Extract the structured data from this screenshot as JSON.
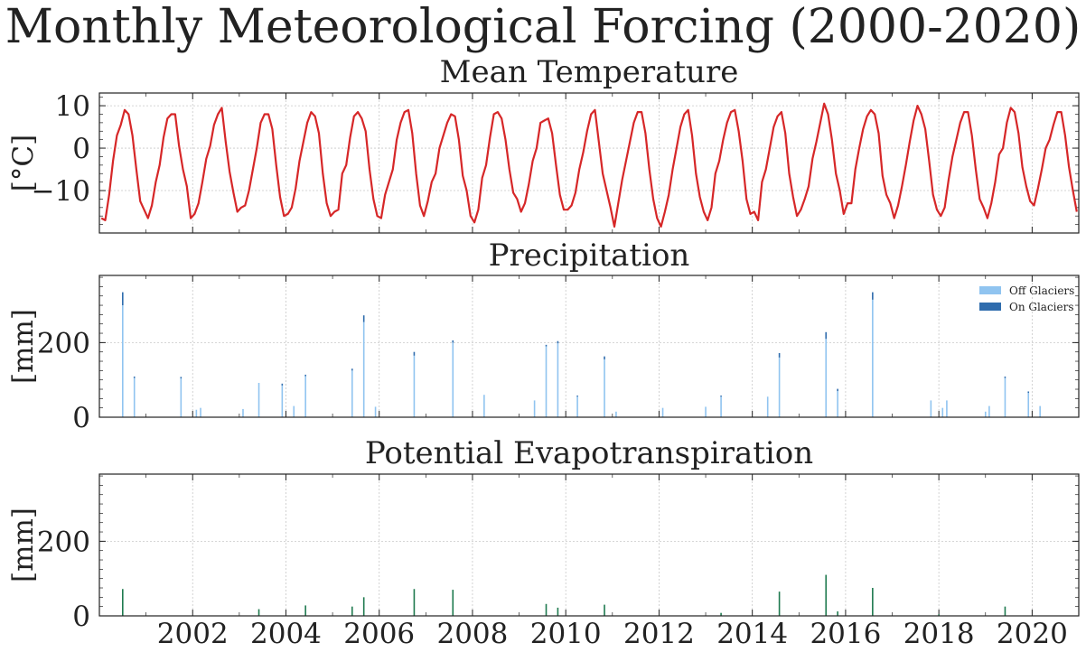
{
  "figure": {
    "suptitle": "Monthly Meteorological Forcing (2000-2020)"
  },
  "chart_data": [
    {
      "type": "line",
      "title": "Mean Temperature",
      "ylabel": "[°C]",
      "xlim": [
        2000.0,
        2021.0
      ],
      "ylim": [
        -20,
        13
      ],
      "yticks": [
        10,
        0,
        -10
      ],
      "ytick_labels": [
        "10",
        "0",
        "−10"
      ],
      "grid": true,
      "series": [
        {
          "color": "#d62728",
          "x_start": 2000.0,
          "x_step_months": 1,
          "values": [
            -16.5,
            -17.0,
            -11.0,
            -3.0,
            3.0,
            5.5,
            9.0,
            8.0,
            3.0,
            -5.0,
            -12.5,
            -14.5,
            -16.5,
            -13.5,
            -8.0,
            -4.0,
            2.5,
            7.0,
            8.0,
            8.0,
            0.5,
            -5.0,
            -9.0,
            -16.5,
            -15.5,
            -13.0,
            -8.0,
            -2.5,
            0.5,
            5.5,
            8.0,
            9.5,
            1.5,
            -5.5,
            -10.5,
            -15.0,
            -14.0,
            -13.5,
            -10.0,
            -5.0,
            0.0,
            6.0,
            8.0,
            8.0,
            4.5,
            -4.0,
            -11.5,
            -16.0,
            -15.5,
            -14.0,
            -9.5,
            -3.0,
            1.5,
            6.0,
            8.5,
            7.5,
            3.5,
            -6.0,
            -13.0,
            -16.0,
            -15.0,
            -14.5,
            -6.0,
            -4.0,
            2.5,
            7.5,
            8.5,
            7.0,
            4.0,
            -5.0,
            -12.0,
            -16.0,
            -16.5,
            -11.0,
            -8.0,
            -5.0,
            2.0,
            6.0,
            8.5,
            9.0,
            3.5,
            -6.0,
            -13.5,
            -16.0,
            -12.5,
            -8.0,
            -6.0,
            0.0,
            3.0,
            6.0,
            8.0,
            7.5,
            2.0,
            -6.5,
            -10.0,
            -16.0,
            -17.5,
            -14.5,
            -7.0,
            -4.0,
            2.5,
            8.0,
            8.5,
            7.0,
            2.0,
            -5.0,
            -10.5,
            -12.0,
            -15.0,
            -13.0,
            -8.5,
            -3.0,
            0.0,
            6.0,
            6.5,
            7.0,
            3.5,
            -4.0,
            -11.0,
            -14.5,
            -14.5,
            -13.5,
            -10.5,
            -5.0,
            -1.0,
            4.0,
            8.0,
            9.0,
            1.5,
            -6.0,
            -10.0,
            -14.0,
            -18.5,
            -13.0,
            -7.5,
            -3.0,
            1.5,
            6.0,
            8.5,
            8.5,
            3.5,
            -5.0,
            -12.0,
            -16.5,
            -18.5,
            -15.0,
            -11.0,
            -5.0,
            0.0,
            5.0,
            8.0,
            9.0,
            3.0,
            -6.0,
            -11.5,
            -15.0,
            -17.0,
            -14.0,
            -6.0,
            -3.0,
            2.0,
            6.0,
            8.5,
            9.0,
            4.0,
            -3.0,
            -12.0,
            -15.5,
            -15.0,
            -17.0,
            -8.0,
            -5.0,
            0.0,
            5.0,
            7.5,
            8.5,
            3.5,
            -6.0,
            -11.5,
            -16.0,
            -14.5,
            -12.0,
            -9.0,
            -2.5,
            1.5,
            6.0,
            10.5,
            8.0,
            2.0,
            -6.0,
            -10.0,
            -15.5,
            -13.0,
            -13.0,
            -5.0,
            0.0,
            4.5,
            7.5,
            9.0,
            8.0,
            3.5,
            -6.5,
            -11.0,
            -13.0,
            -16.5,
            -13.5,
            -9.0,
            -4.0,
            1.5,
            6.5,
            10.0,
            8.0,
            4.5,
            -3.0,
            -11.0,
            -14.5,
            -16.0,
            -14.0,
            -7.5,
            -2.0,
            2.0,
            6.0,
            8.5,
            8.5,
            3.0,
            -5.0,
            -12.0,
            -14.0,
            -16.5,
            -13.0,
            -8.0,
            -1.5,
            0.0,
            6.0,
            9.5,
            8.5,
            3.5,
            -4.5,
            -9.0,
            -12.5,
            -13.5,
            -9.5,
            -5.0,
            0.0,
            2.0,
            5.5,
            8.5,
            8.5,
            3.0,
            -4.5,
            -10.0,
            -15.0
          ]
        }
      ]
    },
    {
      "type": "bar",
      "stacked": true,
      "title": "Precipitation",
      "ylabel": "[mm]",
      "xlim": [
        2000.0,
        2021.0
      ],
      "ylim": [
        0,
        380
      ],
      "yticks": [
        0,
        200
      ],
      "grid": true,
      "legend_position": "top-right",
      "series": [
        {
          "name": "Off Glaciers",
          "color": "#90c4f0",
          "points": [
            [
              2000.5,
              300
            ],
            [
              2000.75,
              105
            ],
            [
              2001.75,
              104
            ],
            [
              2002.08,
              20
            ],
            [
              2002.17,
              25
            ],
            [
              2003.08,
              22
            ],
            [
              2003.42,
              92
            ],
            [
              2003.92,
              85
            ],
            [
              2004.17,
              30
            ],
            [
              2004.42,
              110
            ],
            [
              2005.42,
              125
            ],
            [
              2005.67,
              255
            ],
            [
              2005.92,
              28
            ],
            [
              2006.75,
              165
            ],
            [
              2007.58,
              200
            ],
            [
              2008.25,
              60
            ],
            [
              2009.33,
              45
            ],
            [
              2009.58,
              190
            ],
            [
              2009.83,
              198
            ],
            [
              2010.25,
              55
            ],
            [
              2010.83,
              155
            ],
            [
              2011.08,
              15
            ],
            [
              2012.08,
              25
            ],
            [
              2013.0,
              28
            ],
            [
              2013.33,
              55
            ],
            [
              2014.33,
              55
            ],
            [
              2014.58,
              160
            ],
            [
              2015.58,
              210
            ],
            [
              2015.83,
              70
            ],
            [
              2016.58,
              315
            ],
            [
              2017.83,
              45
            ],
            [
              2018.08,
              25
            ],
            [
              2018.17,
              45
            ],
            [
              2019.0,
              15
            ],
            [
              2019.08,
              30
            ],
            [
              2019.42,
              105
            ],
            [
              2019.92,
              65
            ],
            [
              2020.17,
              30
            ]
          ]
        },
        {
          "name": "On Glaciers",
          "color": "#2f6cad",
          "points": [
            [
              2000.5,
              35
            ],
            [
              2000.75,
              4
            ],
            [
              2001.75,
              4
            ],
            [
              2003.92,
              5
            ],
            [
              2004.42,
              4
            ],
            [
              2005.42,
              5
            ],
            [
              2005.67,
              18
            ],
            [
              2006.75,
              10
            ],
            [
              2007.58,
              6
            ],
            [
              2009.58,
              4
            ],
            [
              2009.83,
              6
            ],
            [
              2010.25,
              3
            ],
            [
              2010.83,
              8
            ],
            [
              2013.33,
              3
            ],
            [
              2014.58,
              12
            ],
            [
              2015.58,
              18
            ],
            [
              2015.83,
              6
            ],
            [
              2016.58,
              20
            ],
            [
              2019.42,
              4
            ],
            [
              2019.92,
              4
            ]
          ]
        }
      ]
    },
    {
      "type": "bar",
      "title": "Potential Evapotranspiration",
      "ylabel": "[mm]",
      "xlim": [
        2000.0,
        2021.0
      ],
      "ylim": [
        0,
        380
      ],
      "yticks": [
        0,
        200
      ],
      "xticks": [
        2002,
        2004,
        2006,
        2008,
        2010,
        2012,
        2014,
        2016,
        2018,
        2020
      ],
      "xtick_labels": [
        "2002",
        "2004",
        "2006",
        "2008",
        "2010",
        "2012",
        "2014",
        "2016",
        "2018",
        "2020"
      ],
      "grid": true,
      "series": [
        {
          "color": "#1f7a4f",
          "points": [
            [
              2000.5,
              72
            ],
            [
              2003.42,
              18
            ],
            [
              2004.42,
              28
            ],
            [
              2005.42,
              25
            ],
            [
              2005.67,
              50
            ],
            [
              2006.75,
              72
            ],
            [
              2007.58,
              70
            ],
            [
              2009.58,
              32
            ],
            [
              2009.83,
              22
            ],
            [
              2010.83,
              30
            ],
            [
              2013.33,
              8
            ],
            [
              2014.58,
              65
            ],
            [
              2015.58,
              110
            ],
            [
              2015.83,
              12
            ],
            [
              2016.58,
              75
            ],
            [
              2018.0,
              4
            ],
            [
              2019.42,
              25
            ]
          ]
        }
      ]
    }
  ]
}
